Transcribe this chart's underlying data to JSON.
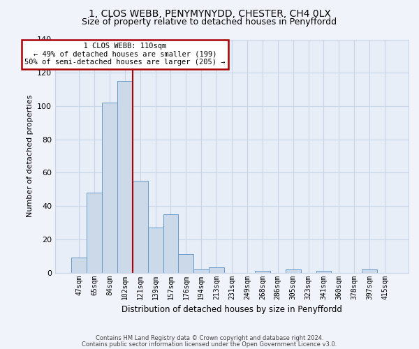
{
  "title": "1, CLOS WEBB, PENYMYNYDD, CHESTER, CH4 0LX",
  "subtitle": "Size of property relative to detached houses in Penyffordd",
  "xlabel": "Distribution of detached houses by size in Penyffordd",
  "ylabel": "Number of detached properties",
  "bar_labels": [
    "47sqm",
    "65sqm",
    "84sqm",
    "102sqm",
    "121sqm",
    "139sqm",
    "157sqm",
    "176sqm",
    "194sqm",
    "213sqm",
    "231sqm",
    "249sqm",
    "268sqm",
    "286sqm",
    "305sqm",
    "323sqm",
    "341sqm",
    "360sqm",
    "378sqm",
    "397sqm",
    "415sqm"
  ],
  "bar_values": [
    9,
    48,
    102,
    115,
    55,
    27,
    35,
    11,
    2,
    3,
    0,
    0,
    1,
    0,
    2,
    0,
    1,
    0,
    0,
    2,
    0
  ],
  "bar_color": "#ccd9e8",
  "bar_edge_color": "#6699cc",
  "ylim": [
    0,
    140
  ],
  "yticks": [
    0,
    20,
    40,
    60,
    80,
    100,
    120,
    140
  ],
  "property_line_x": 3.5,
  "property_line_color": "#aa0000",
  "annotation_title": "1 CLOS WEBB: 110sqm",
  "annotation_line1": "← 49% of detached houses are smaller (199)",
  "annotation_line2": "50% of semi-detached houses are larger (205) →",
  "footer_line1": "Contains HM Land Registry data © Crown copyright and database right 2024.",
  "footer_line2": "Contains public sector information licensed under the Open Government Licence v3.0.",
  "background_color": "#f0f4fa",
  "plot_bg_color": "#e8eef8",
  "grid_color": "#c8d4e8",
  "title_fontsize": 10,
  "subtitle_fontsize": 9
}
